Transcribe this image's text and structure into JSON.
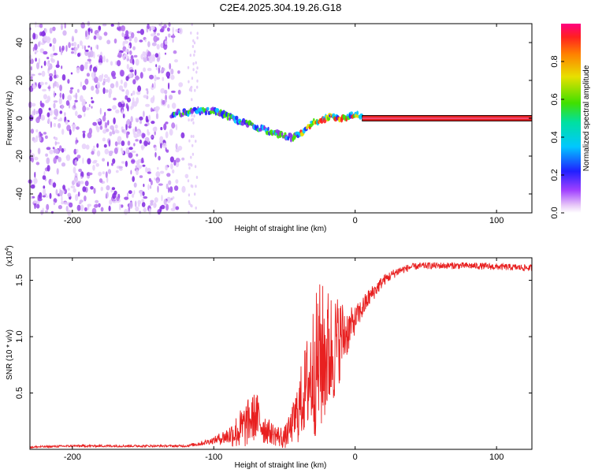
{
  "title": "C2E4.2025.304.19.26.G18",
  "chart_data": [
    {
      "type": "heatmap",
      "name": "spectrogram",
      "xlabel": "Height of straight line (km)",
      "ylabel": "Frequency (Hz)",
      "xlim": [
        -230,
        125
      ],
      "ylim": [
        -50,
        50
      ],
      "xticks": [
        -200,
        -100,
        0,
        100
      ],
      "xtick_labels": [
        "-200",
        "-100",
        "0",
        "100"
      ],
      "yticks": [
        -40,
        -20,
        0,
        20,
        40
      ],
      "ytick_labels": [
        "-40",
        "-20",
        "0",
        "20",
        "40"
      ],
      "noise_region_x": [
        -230,
        -118
      ],
      "track": {
        "x": [
          -130,
          -120,
          -110,
          -100,
          -90,
          -80,
          -70,
          -60,
          -50,
          -45,
          -40,
          -35,
          -30,
          -25,
          -20,
          -15,
          -10,
          -5,
          0,
          5
        ],
        "y": [
          2,
          3,
          4,
          4,
          1,
          -2,
          -5,
          -7,
          -9,
          -10,
          -9,
          -6,
          -2,
          -1,
          0,
          1,
          0,
          1,
          2,
          1
        ]
      },
      "carrier": {
        "x_start": 5,
        "x_end": 125,
        "y": 0,
        "band_halfwidth": 1.5
      },
      "colorbar": {
        "label": "Normalized spectral amplitude",
        "range": [
          0,
          1
        ],
        "ticks": [
          0.0,
          0.2,
          0.4,
          0.6,
          0.8
        ],
        "tick_labels": [
          "0.0",
          "0.2",
          "0.4",
          "0.6",
          "0.8"
        ]
      }
    },
    {
      "type": "line",
      "name": "snr",
      "xlabel": "Height of straight line (km)",
      "ylabel": "SNR (10 * v/v)",
      "scale_note": "(x10",
      "scale_exp": "4",
      "scale_close": ")",
      "xlim": [
        -230,
        125
      ],
      "ylim": [
        0,
        1.7
      ],
      "xticks": [
        -200,
        -100,
        0,
        100
      ],
      "xtick_labels": [
        "-200",
        "-100",
        "0",
        "100"
      ],
      "yticks": [
        0.5,
        1.0,
        1.5
      ],
      "ytick_labels": [
        "0.5",
        "1.0",
        "1.5"
      ],
      "color": "#e82020",
      "envelope": {
        "x": [
          -230,
          -200,
          -150,
          -120,
          -110,
          -100,
          -90,
          -80,
          -75,
          -70,
          -65,
          -60,
          -55,
          -50,
          -45,
          -40,
          -35,
          -30,
          -25,
          -20,
          -15,
          -10,
          -5,
          0,
          10,
          20,
          30,
          40,
          50,
          60,
          80,
          100,
          125
        ],
        "y": [
          0.02,
          0.03,
          0.03,
          0.03,
          0.05,
          0.08,
          0.12,
          0.18,
          0.25,
          0.3,
          0.2,
          0.15,
          0.12,
          0.1,
          0.2,
          0.35,
          0.55,
          0.7,
          0.8,
          0.85,
          0.9,
          1.0,
          1.05,
          1.15,
          1.35,
          1.5,
          1.58,
          1.62,
          1.63,
          1.63,
          1.63,
          1.62,
          1.61
        ]
      },
      "noise_amp": {
        "x": [
          -230,
          -120,
          -100,
          -90,
          -80,
          -70,
          -60,
          -50,
          -45,
          -40,
          -35,
          -30,
          -25,
          -20,
          -15,
          -10,
          -5,
          0,
          10,
          20,
          30,
          40,
          125
        ],
        "y": [
          0.01,
          0.01,
          0.03,
          0.08,
          0.2,
          0.22,
          0.1,
          0.1,
          0.15,
          0.3,
          0.4,
          0.6,
          0.7,
          0.6,
          0.5,
          0.35,
          0.2,
          0.12,
          0.08,
          0.05,
          0.04,
          0.03,
          0.03
        ]
      }
    }
  ]
}
